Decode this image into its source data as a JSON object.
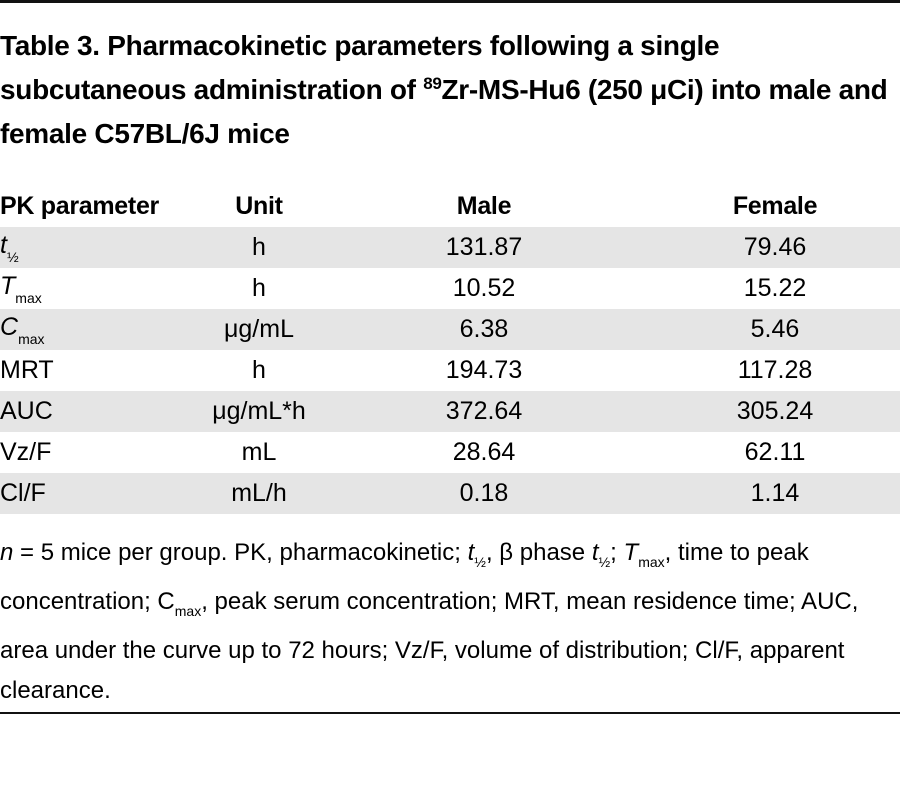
{
  "title": {
    "prefix": "Table 3. Pharmacokinetic parameters following a single subcutaneous administration of ",
    "isotope": "89",
    "suffix": "Zr-MS-Hu6 (250 μCi) into male and female C57BL/6J mice"
  },
  "table": {
    "headers": [
      "PK parameter",
      "Unit",
      "Male",
      "Female"
    ],
    "rows": [
      {
        "param": "t",
        "param_sub": "½",
        "unit": "h",
        "male": "131.87",
        "female": "79.46"
      },
      {
        "param": "T",
        "param_sub": "max",
        "unit": "h",
        "male": "10.52",
        "female": "15.22"
      },
      {
        "param": "C",
        "param_sub": "max",
        "unit": "μg/mL",
        "male": "6.38",
        "female": "5.46"
      },
      {
        "param": "MRT",
        "param_sub": "",
        "unit": "h",
        "male": "194.73",
        "female": "117.28"
      },
      {
        "param": "AUC",
        "param_sub": "",
        "unit": "μg/mL*h",
        "male": "372.64",
        "female": "305.24"
      },
      {
        "param": "Vz/F",
        "param_sub": "",
        "unit": "mL",
        "male": "28.64",
        "female": "62.11"
      },
      {
        "param": "Cl/F",
        "param_sub": "",
        "unit": "mL/h",
        "male": "0.18",
        "female": "1.14"
      }
    ]
  },
  "footnote": {
    "n": "n",
    "part1": " = 5 mice per group. PK, pharmacokinetic; ",
    "t1": "t",
    "t1_sub": "½",
    "part2": ", β phase ",
    "t2": "t",
    "t2_sub": "½",
    "part3": "; ",
    "tmax": "T",
    "tmax_sub": "max",
    "part4": ", time to peak concentration; C",
    "cmax_sub": "max",
    "part5": ", peak serum concentration; MRT, mean residence time; AUC, area under the curve up to 72 hours; Vz/F, volume of distribution; Cl/F, apparent clearance."
  }
}
